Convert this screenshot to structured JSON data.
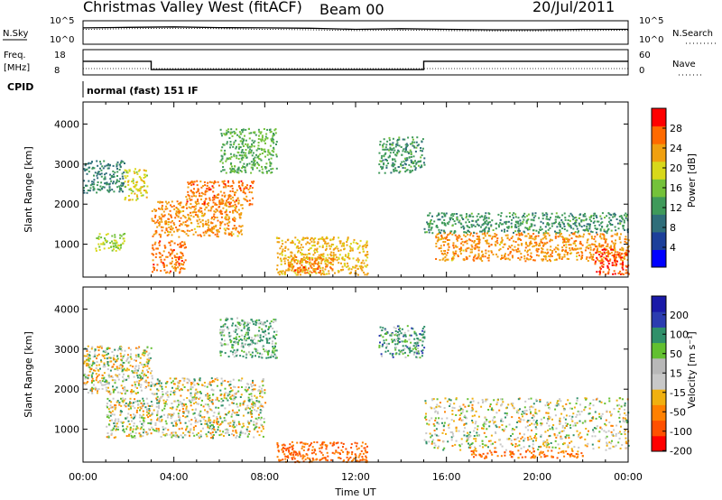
{
  "header": {
    "station": "Christmas Valley West (fitACF)",
    "beam": "Beam 00",
    "date": "20/Jul/2011"
  },
  "top_panels": {
    "nsky_label": "N.Sky",
    "nsky_ticks": [
      "10^5",
      "10^0"
    ],
    "nsearch_label": "N.Search",
    "nsearch_ticks": [
      "10^5",
      "10^0"
    ],
    "freq_label": "Freq.",
    "freq_unit": "[MHz]",
    "freq_ticks": [
      "18",
      "8"
    ],
    "nave_label": "Nave",
    "nave_ticks": [
      "60",
      "0"
    ],
    "cpid_label": "CPID",
    "cpid_value": "normal (fast) 151 IF"
  },
  "colors": {
    "power_scale": [
      "#0000ff",
      "#1c3f9a",
      "#2f6e7a",
      "#3f9a5a",
      "#74c23a",
      "#d8d81a",
      "#f0a010",
      "#ff6a00",
      "#ff0000"
    ],
    "velocity_scale": [
      "#1a1aa8",
      "#2b3cb0",
      "#30906a",
      "#62c030",
      "#b8b8b8",
      "#c8c8c8",
      "#f0b010",
      "#ff8000",
      "#ff5000",
      "#ff0000"
    ],
    "frame": "#000000"
  },
  "chart_data": [
    {
      "type": "line",
      "panel": "N.Sky / N.Search",
      "x_unit": "UT hours",
      "xlim": [
        0,
        24
      ],
      "y_scale": "log",
      "ylim_label": [
        "10^0",
        "10^5"
      ],
      "series": [
        {
          "name": "N.Sky",
          "x": [
            0,
            2,
            4,
            6,
            8,
            10,
            12,
            14,
            16,
            18,
            20,
            22,
            24
          ],
          "values": [
            3000,
            4000,
            5000,
            3500,
            3000,
            2500,
            1500,
            2000,
            1500,
            1200,
            1200,
            1500,
            1500
          ]
        },
        {
          "name": "N.Search",
          "x": [
            0,
            2,
            4,
            6,
            8,
            10,
            12,
            14,
            16,
            18,
            20,
            22,
            24
          ],
          "values": [
            1500,
            2000,
            2500,
            2000,
            1500,
            1200,
            800,
            1000,
            800,
            700,
            700,
            800,
            900
          ]
        }
      ]
    },
    {
      "type": "line",
      "panel": "Freq. / Nave",
      "x_unit": "UT hours",
      "xlim": [
        0,
        24
      ],
      "ylim_freq": [
        8,
        18
      ],
      "ylim_nave": [
        0,
        60
      ],
      "series": [
        {
          "name": "Freq.",
          "x": [
            0,
            3,
            3,
            15,
            15,
            24
          ],
          "values": [
            13.4,
            13.4,
            10.1,
            10.1,
            13.4,
            13.4
          ]
        },
        {
          "name": "Nave",
          "x": [
            0,
            3,
            3,
            15,
            15,
            24
          ],
          "values": [
            15,
            15,
            15,
            15,
            15,
            15
          ]
        }
      ]
    },
    {
      "type": "heatmap",
      "panel": "Power",
      "xlabel": "Time UT",
      "ylabel": "Slant Range [km]",
      "x_ticks": [
        "00:00",
        "04:00",
        "08:00",
        "12:00",
        "16:00",
        "20:00",
        "00:00"
      ],
      "xlim_hours": [
        0,
        24
      ],
      "y_ticks": [
        1000,
        2000,
        3000,
        4000
      ],
      "ylim": [
        180,
        4550
      ],
      "colorbar_label": "Power [dB]",
      "colorbar_ticks": [
        4,
        8,
        12,
        16,
        20,
        24,
        28
      ],
      "clim": [
        0,
        32
      ],
      "regions": [
        {
          "t0": 0.0,
          "t1": 1.8,
          "r0": 2300,
          "r1": 3100,
          "value": 10
        },
        {
          "t0": 0.5,
          "t1": 1.8,
          "r0": 850,
          "r1": 1300,
          "value": 18
        },
        {
          "t0": 1.8,
          "t1": 2.8,
          "r0": 2100,
          "r1": 2900,
          "value": 20
        },
        {
          "t0": 3.0,
          "t1": 4.5,
          "r0": 300,
          "r1": 1100,
          "value": 26
        },
        {
          "t0": 3.0,
          "t1": 7.0,
          "r0": 1200,
          "r1": 2100,
          "value": 24
        },
        {
          "t0": 4.5,
          "t1": 7.5,
          "r0": 2000,
          "r1": 2600,
          "value": 26
        },
        {
          "t0": 6.0,
          "t1": 8.5,
          "r0": 2800,
          "r1": 3900,
          "value": 14
        },
        {
          "t0": 8.5,
          "t1": 12.5,
          "r0": 250,
          "r1": 1200,
          "value": 22
        },
        {
          "t0": 9.0,
          "t1": 11.0,
          "r0": 300,
          "r1": 700,
          "value": 26
        },
        {
          "t0": 13.0,
          "t1": 15.0,
          "r0": 2800,
          "r1": 3700,
          "value": 12
        },
        {
          "t0": 15.0,
          "t1": 24.0,
          "r0": 1300,
          "r1": 1800,
          "value": 12
        },
        {
          "t0": 15.5,
          "t1": 24.0,
          "r0": 600,
          "r1": 1300,
          "value": 24
        },
        {
          "t0": 22.5,
          "t1": 24.0,
          "r0": 250,
          "r1": 900,
          "value": 28
        }
      ]
    },
    {
      "type": "heatmap",
      "panel": "Velocity",
      "xlabel": "Time UT",
      "ylabel": "Slant Range [km]",
      "x_ticks": [
        "00:00",
        "04:00",
        "08:00",
        "12:00",
        "16:00",
        "20:00",
        "00:00"
      ],
      "xlim_hours": [
        0,
        24
      ],
      "y_ticks": [
        1000,
        2000,
        3000,
        4000
      ],
      "ylim": [
        180,
        4550
      ],
      "colorbar_label": "Velocity [m s⁻¹]",
      "colorbar_ticks": [
        200,
        100,
        50,
        15,
        -15,
        -50,
        -100,
        -200
      ],
      "clim": [
        -250,
        250
      ],
      "regions": [
        {
          "t0": 0.0,
          "t1": 3.0,
          "r0": 1900,
          "r1": 3100,
          "value": 0
        },
        {
          "t0": 1.0,
          "t1": 3.0,
          "r0": 800,
          "r1": 1800,
          "value": 0
        },
        {
          "t0": 3.0,
          "t1": 8.0,
          "r0": 800,
          "r1": 2300,
          "value": 0
        },
        {
          "t0": 6.0,
          "t1": 8.5,
          "r0": 2800,
          "r1": 3800,
          "value": 30
        },
        {
          "t0": 8.5,
          "t1": 12.5,
          "r0": 200,
          "r1": 700,
          "value": -80
        },
        {
          "t0": 13.0,
          "t1": 15.0,
          "r0": 2800,
          "r1": 3600,
          "value": 40
        },
        {
          "t0": 15.0,
          "t1": 24.0,
          "r0": 500,
          "r1": 1800,
          "value": 0
        },
        {
          "t0": 17.0,
          "t1": 22.0,
          "r0": 300,
          "r1": 500,
          "value": -70
        }
      ]
    }
  ]
}
